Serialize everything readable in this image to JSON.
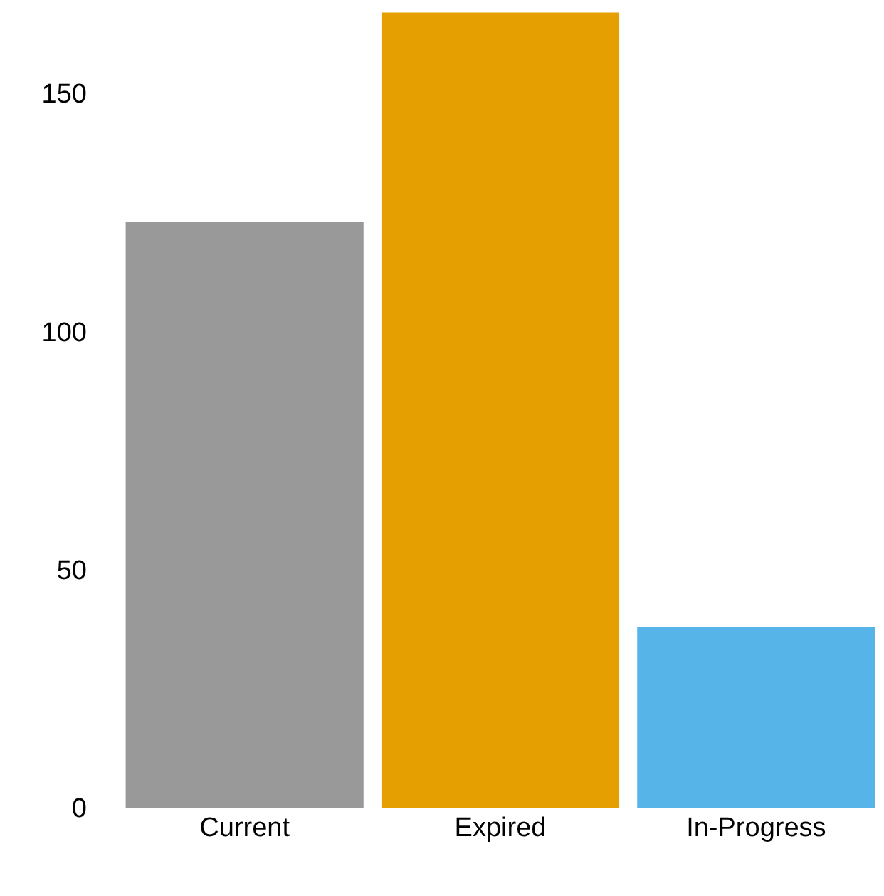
{
  "chart_data": {
    "type": "bar",
    "categories": [
      "Current",
      "Expired",
      "In-Progress"
    ],
    "values": [
      123,
      167,
      38
    ],
    "colors": [
      "#999999",
      "#e69f00",
      "#56b4e9"
    ],
    "ylim": [
      0,
      169
    ],
    "yticks": [
      0,
      50,
      100,
      150
    ]
  }
}
